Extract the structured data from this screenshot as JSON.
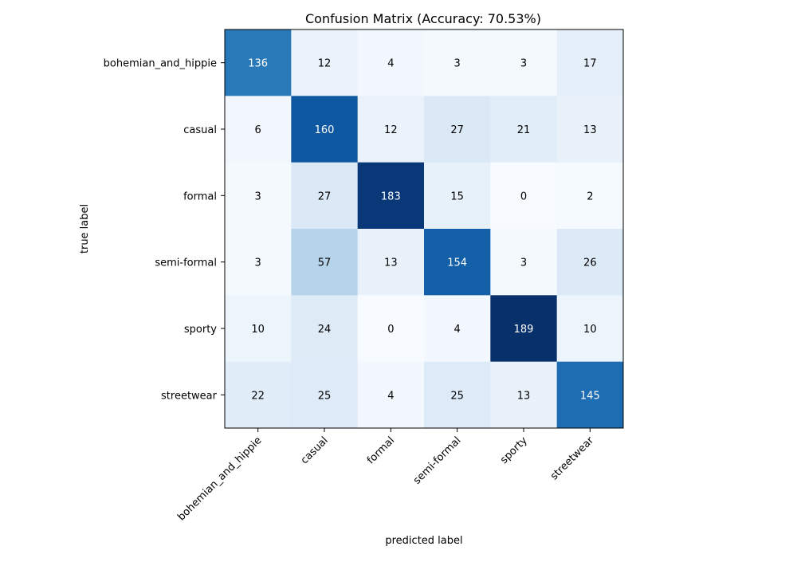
{
  "chart_data": {
    "type": "heatmap",
    "title": "Confusion Matrix (Accuracy: 70.53%)",
    "xlabel": "predicted label",
    "ylabel": "true label",
    "row_labels": [
      "bohemian_and_hippie",
      "casual",
      "formal",
      "semi-formal",
      "sporty",
      "streetwear"
    ],
    "col_labels": [
      "bohemian_and_hippie",
      "casual",
      "formal",
      "semi-formal",
      "sporty",
      "streetwear"
    ],
    "values": [
      [
        136,
        12,
        4,
        3,
        3,
        17
      ],
      [
        6,
        160,
        12,
        27,
        21,
        13
      ],
      [
        3,
        27,
        183,
        15,
        0,
        2
      ],
      [
        3,
        57,
        13,
        154,
        3,
        26
      ],
      [
        10,
        24,
        0,
        4,
        189,
        10
      ],
      [
        22,
        25,
        4,
        25,
        13,
        145
      ]
    ],
    "vmin": 0,
    "vmax": 189,
    "colormap": [
      "#f7fbff",
      "#deebf7",
      "#c6dbef",
      "#9ecae1",
      "#6baed6",
      "#4292c6",
      "#2171b5",
      "#08519c",
      "#08306b"
    ],
    "text_color_light": "#ffffff",
    "text_color_dark": "#000000"
  }
}
